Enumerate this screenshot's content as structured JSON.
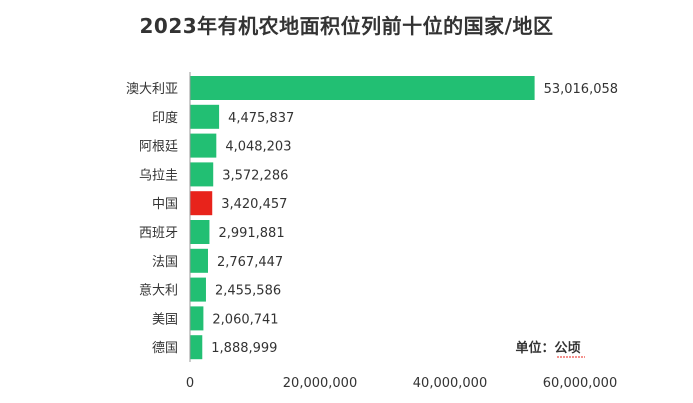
{
  "chart_data": {
    "type": "bar",
    "orientation": "horizontal",
    "title": "2023年有机农地面积位列前十位的国家/地区",
    "unit_label": "单位：公顷",
    "categories": [
      "澳大利亚",
      "印度",
      "阿根廷",
      "乌拉圭",
      "中国",
      "西班牙",
      "法国",
      "意大利",
      "美国",
      "德国"
    ],
    "values": [
      53016058,
      4475837,
      4048203,
      3572286,
      3420457,
      2991881,
      2767447,
      2455586,
      2060741,
      1888999
    ],
    "value_labels": [
      "53,016,058",
      "4,475,837",
      "4,048,203",
      "3,572,286",
      "3,420,457",
      "2,991,881",
      "2,767,447",
      "2,455,586",
      "2,060,741",
      "1,888,999"
    ],
    "xlim": [
      0,
      60000000
    ],
    "xticks": [
      0,
      20000000,
      40000000,
      60000000
    ],
    "xtick_labels": [
      "0",
      "20,000,000",
      "40,000,000",
      "60,000,000"
    ],
    "grid": false,
    "bar_color": "#22bf73",
    "highlight_category": "中国",
    "highlight_color": "#e8231b",
    "axis_color": "#9a9a9a"
  }
}
